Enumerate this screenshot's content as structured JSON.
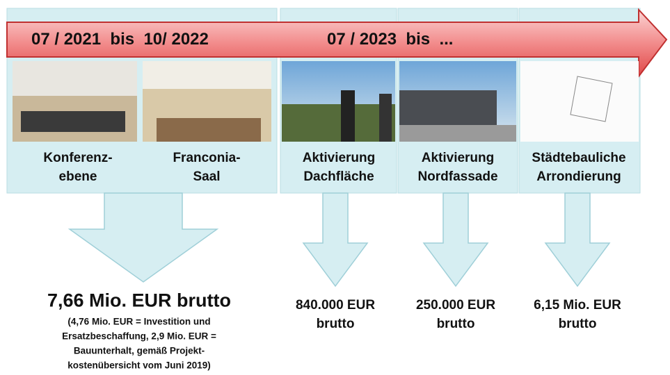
{
  "timeline": {
    "periods": [
      "07 / 2021  bis  10/ 2022",
      "07 / 2023  bis  ..."
    ]
  },
  "projects": [
    {
      "label": [
        "Konferenz-",
        "ebene"
      ]
    },
    {
      "label": [
        "Franconia-",
        "Saal"
      ]
    },
    {
      "label": [
        "Aktivierung",
        "Dachfläche"
      ]
    },
    {
      "label": [
        "Aktivierung",
        "Nordfassade"
      ]
    },
    {
      "label": [
        "Städtebauliche",
        "Arrondierung"
      ]
    }
  ],
  "costs": [
    {
      "amount": [
        "7,66 Mio. EUR brutto"
      ],
      "note": [
        "(4,76 Mio. EUR = Investition und",
        "Ersatzbeschaffung, 2,9 Mio. EUR =",
        "Bauunterhalt, gemäß Projekt-",
        "kostenübersicht vom Juni 2019)"
      ]
    },
    {
      "amount": [
        "840.000 EUR",
        "brutto"
      ]
    },
    {
      "amount": [
        "250.000 EUR",
        "brutto"
      ]
    },
    {
      "amount": [
        "6,15 Mio. EUR",
        "brutto"
      ]
    }
  ]
}
